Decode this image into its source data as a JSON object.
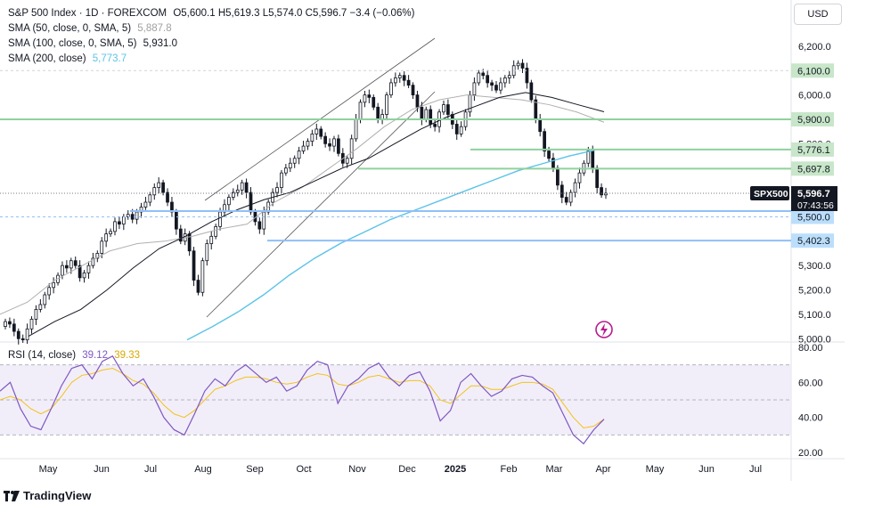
{
  "header": {
    "symbol": "S&P 500 Index · 1D · FOREXCOM",
    "ohlc": "O5,600.1  H5,619.3  L5,574.0  C5,596.7  −3.4 (−0.06%)"
  },
  "indicators": [
    {
      "label": "SMA (50, close, 0, SMA, 5)",
      "value": "5,887.8",
      "color": "#a0a0a0"
    },
    {
      "label": "SMA (100, close, 0, SMA, 5)",
      "value": "5,931.0",
      "color": "#131722"
    },
    {
      "label": "SMA (200, close)",
      "value": "5,773.7",
      "color": "#5cc3e8"
    }
  ],
  "rsi_legend": {
    "label": "RSI (14, close)",
    "rsi_value": "39.12",
    "rsi_color": "#7e57c2",
    "ma_value": "39.33",
    "ma_color": "#f2c21b"
  },
  "currency_button": "USD",
  "branding": "TradingView",
  "chart_data": {
    "type": "candlestick",
    "x_ticks": [
      "May",
      "Jun",
      "Jul",
      "Aug",
      "Sep",
      "Oct",
      "Nov",
      "Dec",
      "2025",
      "Feb",
      "Mar",
      "Apr",
      "May",
      "Jun",
      "Jul"
    ],
    "price_ticks": [
      6200,
      6100,
      6000,
      5900,
      5800,
      5700,
      5600,
      5500,
      5400,
      5300,
      5200,
      5100,
      5000
    ],
    "price_range": [
      4990,
      6280
    ],
    "rsi_ticks": [
      80,
      60,
      40,
      20
    ],
    "rsi_range": [
      18,
      82
    ],
    "rsi_band": [
      30,
      70
    ],
    "current": {
      "label": "SPX500",
      "price": "5,596.7",
      "countdown": "07:43:56",
      "value": 5596.7
    },
    "levels": [
      {
        "value": 6100,
        "label": "6,100.0",
        "kind": "dashed"
      },
      {
        "value": 5900,
        "label": "5,900.0",
        "kind": "resistance",
        "color": "#8fd19e"
      },
      {
        "value": 5776.1,
        "label": "5,776.1",
        "kind": "resistance",
        "color": "#8fd19e"
      },
      {
        "value": 5697.8,
        "label": "5,697.8",
        "kind": "resistance",
        "color": "#8fd19e"
      },
      {
        "value": 5523.4,
        "label": "5,523.4",
        "kind": "support",
        "color": "#90bff9"
      },
      {
        "value": 5500,
        "label": "5,500.0",
        "kind": "support",
        "color": "#90bff9"
      },
      {
        "value": 5402.3,
        "label": "5,402.3",
        "kind": "support",
        "color": "#90bff9"
      }
    ],
    "series": [
      {
        "name": "Close",
        "values": [
          5070,
          5060,
          5030,
          5000,
          4995,
          5040,
          5080,
          5120,
          5140,
          5180,
          5210,
          5230,
          5260,
          5300,
          5290,
          5320,
          5300,
          5250,
          5270,
          5300,
          5330,
          5350,
          5400,
          5430,
          5440,
          5480,
          5470,
          5500,
          5510,
          5490,
          5520,
          5540,
          5560,
          5590,
          5620,
          5640,
          5600,
          5560,
          5520,
          5450,
          5400,
          5430,
          5360,
          5240,
          5190,
          5320,
          5390,
          5420,
          5460,
          5520,
          5550,
          5580,
          5600,
          5610,
          5640,
          5600,
          5520,
          5480,
          5450,
          5520,
          5560,
          5600,
          5620,
          5680,
          5700,
          5720,
          5740,
          5770,
          5790,
          5810,
          5840,
          5860,
          5830,
          5800,
          5790,
          5820,
          5760,
          5720,
          5740,
          5820,
          5900,
          5970,
          6000,
          5990,
          5950,
          5900,
          5920,
          6000,
          6050,
          6070,
          6080,
          6060,
          6040,
          6000,
          5950,
          5900,
          5940,
          5880,
          5870,
          5930,
          5960,
          5920,
          5880,
          5840,
          5870,
          5930,
          6000,
          6050,
          6090,
          6080,
          6050,
          6040,
          6020,
          6050,
          6070,
          6080,
          6120,
          6130,
          6110,
          6050,
          5980,
          5900,
          5850,
          5770,
          5740,
          5700,
          5630,
          5580,
          5560,
          5600,
          5640,
          5680,
          5720,
          5770,
          5700,
          5620,
          5590,
          5597
        ]
      },
      {
        "name": "SMA (50, close, 0, SMA, 5)",
        "values": [
          5100,
          5150,
          5240,
          5300,
          5360,
          5390,
          5400,
          5420,
          5450,
          5470,
          5560,
          5620,
          5700,
          5780,
          5870,
          5940,
          5980,
          6000,
          5990,
          5980,
          5960,
          5930,
          5888
        ]
      },
      {
        "name": "SMA (100, close, 0, SMA, 5)",
        "values": [
          5010,
          5070,
          5120,
          5200,
          5290,
          5370,
          5420,
          5480,
          5530,
          5570,
          5600,
          5650,
          5700,
          5740,
          5800,
          5860,
          5910,
          5950,
          5990,
          6010,
          5990,
          5960,
          5931
        ]
      },
      {
        "name": "SMA (200, close)",
        "values": [
          4995,
          5050,
          5110,
          5180,
          5260,
          5330,
          5390,
          5440,
          5490,
          5530,
          5570,
          5610,
          5650,
          5690,
          5720,
          5750,
          5774
        ]
      },
      {
        "name": "RSI (14, close)",
        "values": [
          55,
          60,
          45,
          35,
          33,
          45,
          58,
          68,
          70,
          62,
          72,
          75,
          65,
          58,
          62,
          52,
          40,
          33,
          30,
          42,
          55,
          62,
          58,
          66,
          70,
          65,
          60,
          63,
          55,
          58,
          67,
          72,
          70,
          48,
          58,
          62,
          68,
          71,
          63,
          58,
          64,
          66,
          55,
          38,
          44,
          60,
          65,
          58,
          52,
          55,
          62,
          64,
          63,
          58,
          54,
          42,
          30,
          25,
          33,
          39
        ]
      },
      {
        "name": "RSI MA",
        "values": [
          50,
          52,
          50,
          45,
          42,
          45,
          52,
          60,
          64,
          65,
          67,
          68,
          65,
          61,
          59,
          54,
          47,
          42,
          40,
          44,
          50,
          56,
          58,
          61,
          63,
          63,
          62,
          60,
          59,
          60,
          63,
          65,
          64,
          59,
          58,
          60,
          63,
          64,
          62,
          60,
          61,
          61,
          58,
          50,
          48,
          53,
          58,
          58,
          56,
          56,
          58,
          60,
          60,
          59,
          56,
          48,
          40,
          34,
          35,
          39
        ]
      }
    ]
  }
}
